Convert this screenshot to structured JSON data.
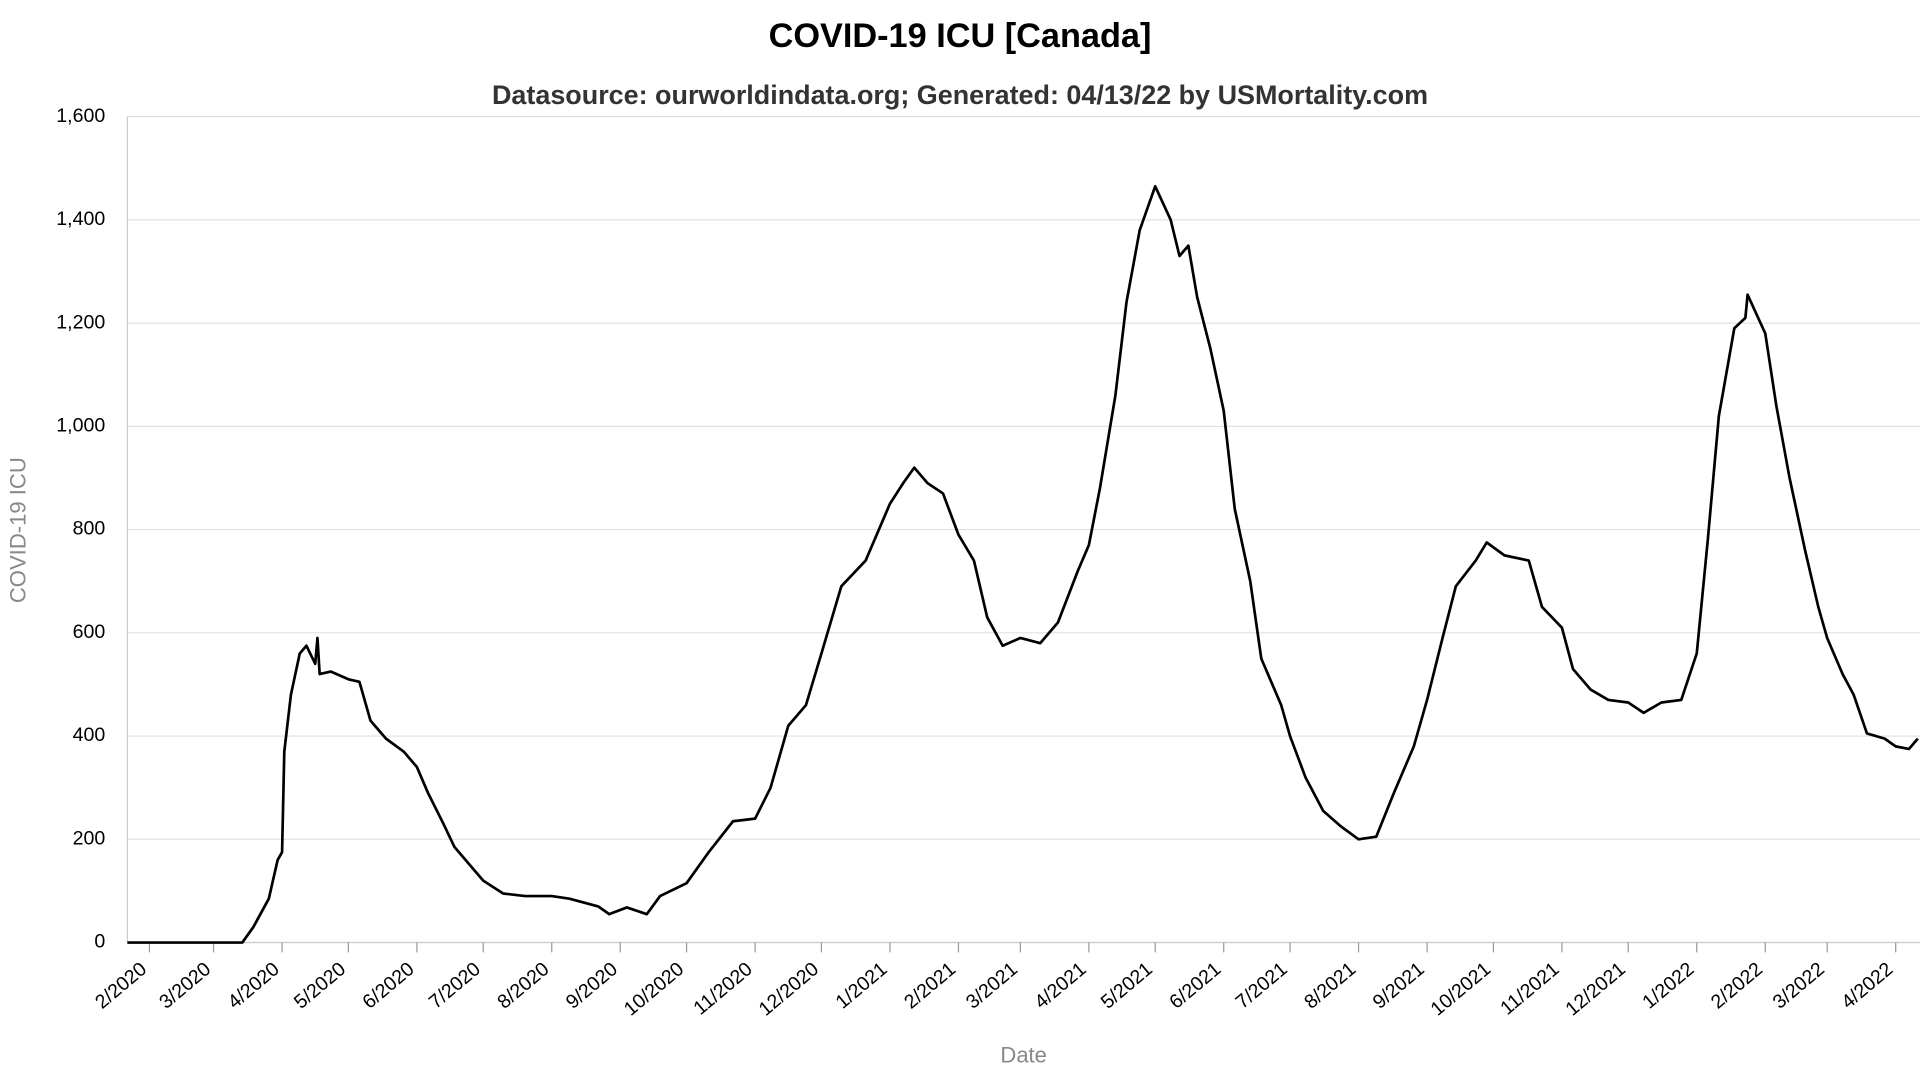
{
  "chart_data": {
    "type": "line",
    "title": "COVID-19 ICU [Canada]",
    "subtitle": "Datasource: ourworldindata.org; Generated: 04/13/22 by USMortality.com",
    "x_label": "Date",
    "y_label": "COVID-19 ICU",
    "grid": true,
    "xlim": [
      "2020-01-22",
      "2022-04-12"
    ],
    "ylim": [
      0,
      1600
    ],
    "yticks": [
      0,
      200,
      400,
      600,
      800,
      {
        "value": 1000,
        "label": "1,000"
      },
      {
        "value": 1200,
        "label": "1,200"
      },
      {
        "value": 1400,
        "label": "1,400"
      },
      {
        "value": 1600,
        "label": "1,600"
      }
    ],
    "xticks": [
      {
        "value": "2020-02-01",
        "label": "2/2020"
      },
      {
        "value": "2020-03-01",
        "label": "3/2020"
      },
      {
        "value": "2020-04-01",
        "label": "4/2020"
      },
      {
        "value": "2020-05-01",
        "label": "5/2020"
      },
      {
        "value": "2020-06-01",
        "label": "6/2020"
      },
      {
        "value": "2020-07-01",
        "label": "7/2020"
      },
      {
        "value": "2020-08-01",
        "label": "8/2020"
      },
      {
        "value": "2020-09-01",
        "label": "9/2020"
      },
      {
        "value": "2020-10-01",
        "label": "10/2020"
      },
      {
        "value": "2020-11-01",
        "label": "11/2020"
      },
      {
        "value": "2020-12-01",
        "label": "12/2020"
      },
      {
        "value": "2021-01-01",
        "label": "1/2021"
      },
      {
        "value": "2021-02-01",
        "label": "2/2021"
      },
      {
        "value": "2021-03-01",
        "label": "3/2021"
      },
      {
        "value": "2021-04-01",
        "label": "4/2021"
      },
      {
        "value": "2021-05-01",
        "label": "5/2021"
      },
      {
        "value": "2021-06-01",
        "label": "6/2021"
      },
      {
        "value": "2021-07-01",
        "label": "7/2021"
      },
      {
        "value": "2021-08-01",
        "label": "8/2021"
      },
      {
        "value": "2021-09-01",
        "label": "9/2021"
      },
      {
        "value": "2021-10-01",
        "label": "10/2021"
      },
      {
        "value": "2021-11-01",
        "label": "11/2021"
      },
      {
        "value": "2021-12-01",
        "label": "12/2021"
      },
      {
        "value": "2022-01-01",
        "label": "1/2022"
      },
      {
        "value": "2022-02-01",
        "label": "2/2022"
      },
      {
        "value": "2022-03-01",
        "label": "3/2022"
      },
      {
        "value": "2022-04-01",
        "label": "4/2022"
      }
    ],
    "x": [
      "2020-01-22",
      "2020-03-14",
      "2020-03-19",
      "2020-03-26",
      "2020-03-30",
      "2020-04-01",
      "2020-04-02",
      "2020-04-05",
      "2020-04-09",
      "2020-04-12",
      "2020-04-16",
      "2020-04-17",
      "2020-04-18",
      "2020-04-23",
      "2020-05-01",
      "2020-05-06",
      "2020-05-11",
      "2020-05-18",
      "2020-05-26",
      "2020-06-01",
      "2020-06-06",
      "2020-06-13",
      "2020-06-18",
      "2020-06-25",
      "2020-07-01",
      "2020-07-10",
      "2020-07-20",
      "2020-08-01",
      "2020-08-09",
      "2020-08-22",
      "2020-08-27",
      "2020-09-04",
      "2020-09-13",
      "2020-09-19",
      "2020-10-01",
      "2020-10-11",
      "2020-10-22",
      "2020-11-01",
      "2020-11-08",
      "2020-11-16",
      "2020-11-24",
      "2020-12-01",
      "2020-12-10",
      "2020-12-21",
      "2021-01-01",
      "2021-01-07",
      "2021-01-12",
      "2021-01-18",
      "2021-01-25",
      "2021-02-01",
      "2021-02-08",
      "2021-02-14",
      "2021-02-21",
      "2021-03-01",
      "2021-03-10",
      "2021-03-18",
      "2021-03-27",
      "2021-04-01",
      "2021-04-06",
      "2021-04-13",
      "2021-04-18",
      "2021-04-24",
      "2021-05-01",
      "2021-05-08",
      "2021-05-12",
      "2021-05-16",
      "2021-05-20",
      "2021-05-26",
      "2021-06-01",
      "2021-06-06",
      "2021-06-13",
      "2021-06-18",
      "2021-06-27",
      "2021-07-01",
      "2021-07-08",
      "2021-07-16",
      "2021-07-24",
      "2021-08-01",
      "2021-08-09",
      "2021-08-17",
      "2021-08-26",
      "2021-09-01",
      "2021-09-08",
      "2021-09-14",
      "2021-09-23",
      "2021-09-28",
      "2021-10-06",
      "2021-10-17",
      "2021-10-23",
      "2021-11-01",
      "2021-11-06",
      "2021-11-14",
      "2021-11-22",
      "2021-12-01",
      "2021-12-08",
      "2021-12-16",
      "2021-12-25",
      "2022-01-01",
      "2022-01-06",
      "2022-01-11",
      "2022-01-18",
      "2022-01-23",
      "2022-01-24",
      "2022-02-01",
      "2022-02-06",
      "2022-02-12",
      "2022-02-19",
      "2022-02-25",
      "2022-03-01",
      "2022-03-08",
      "2022-03-13",
      "2022-03-19",
      "2022-03-27",
      "2022-04-01",
      "2022-04-07",
      "2022-04-11"
    ],
    "series": [
      {
        "name": "COVID-19 ICU",
        "color": "#000000",
        "values": [
          0,
          0,
          30,
          85,
          160,
          175,
          370,
          480,
          560,
          575,
          540,
          590,
          520,
          525,
          510,
          505,
          430,
          395,
          370,
          340,
          290,
          230,
          185,
          150,
          120,
          95,
          90,
          90,
          85,
          70,
          55,
          68,
          55,
          90,
          115,
          175,
          235,
          240,
          300,
          420,
          460,
          560,
          690,
          740,
          850,
          890,
          920,
          890,
          870,
          790,
          740,
          630,
          575,
          590,
          580,
          620,
          720,
          770,
          880,
          1060,
          1240,
          1380,
          1465,
          1400,
          1330,
          1350,
          1250,
          1150,
          1030,
          840,
          700,
          550,
          460,
          400,
          320,
          255,
          225,
          200,
          205,
          290,
          380,
          470,
          590,
          690,
          740,
          775,
          750,
          740,
          650,
          610,
          530,
          490,
          470,
          465,
          445,
          465,
          470,
          560,
          780,
          1020,
          1190,
          1210,
          1255,
          1180,
          1040,
          900,
          760,
          650,
          590,
          520,
          480,
          405,
          395,
          380,
          375,
          395
        ]
      }
    ]
  }
}
